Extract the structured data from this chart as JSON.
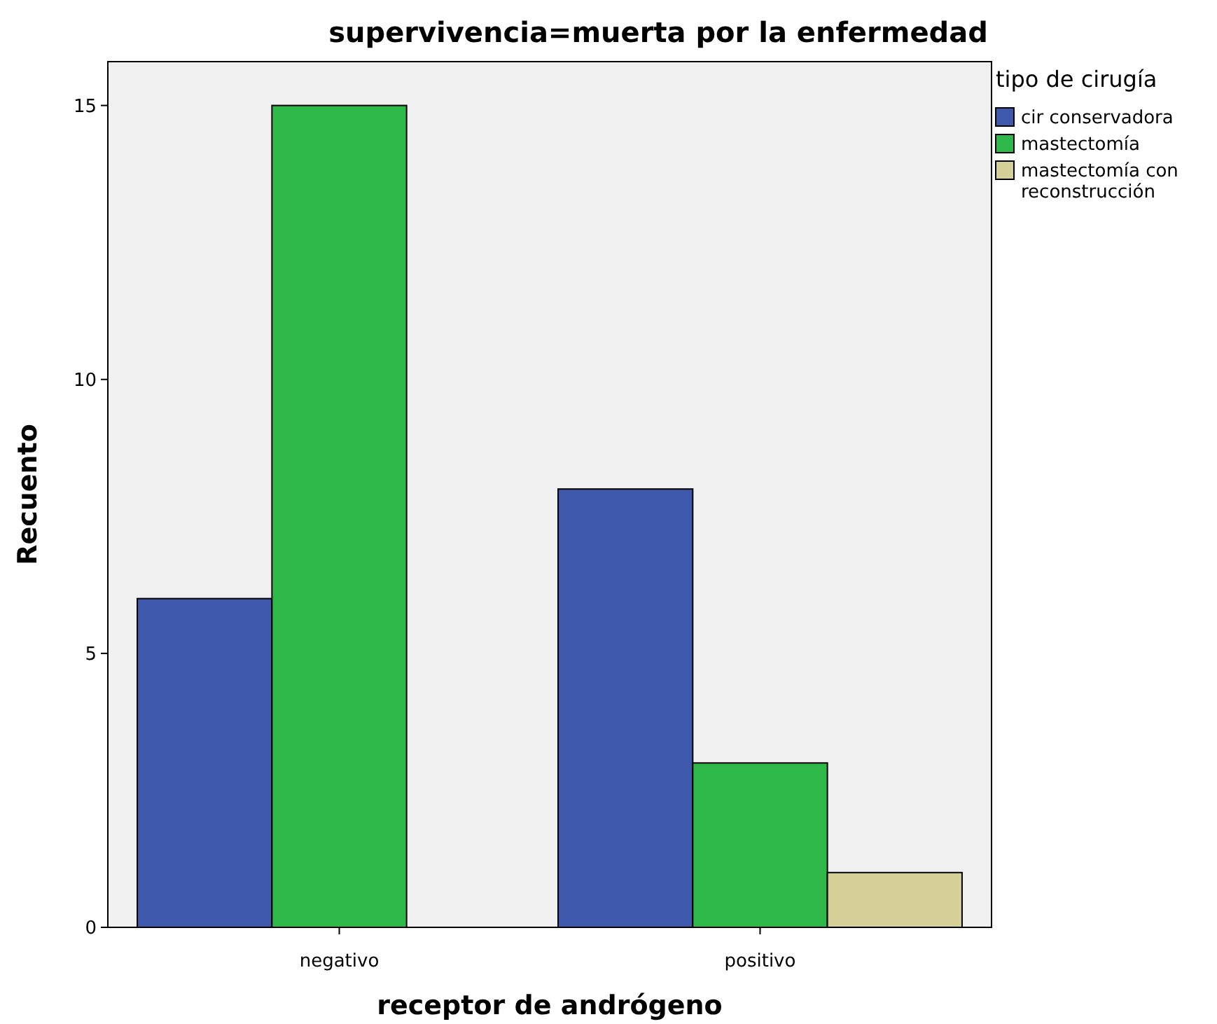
{
  "chart_data": {
    "type": "bar",
    "title": "supervivencia=muerta por la enfermedad",
    "xlabel": "receptor de andrógeno",
    "ylabel": "Recuento",
    "legend_title": "tipo de cirugía",
    "categories": [
      "negativo",
      "positivo"
    ],
    "series": [
      {
        "name": "cir conservadora",
        "color": "#3e58ac",
        "values": [
          6,
          8
        ]
      },
      {
        "name": "mastectomía",
        "color": "#2fb84a",
        "values": [
          15,
          3
        ]
      },
      {
        "name": "mastectomía con reconstrucción",
        "color": "#d5cf98",
        "values": [
          null,
          1
        ]
      }
    ],
    "ylim": [
      0,
      15.8
    ],
    "yticks": [
      0,
      5,
      10,
      15
    ],
    "grid": false,
    "legend": "top right"
  }
}
